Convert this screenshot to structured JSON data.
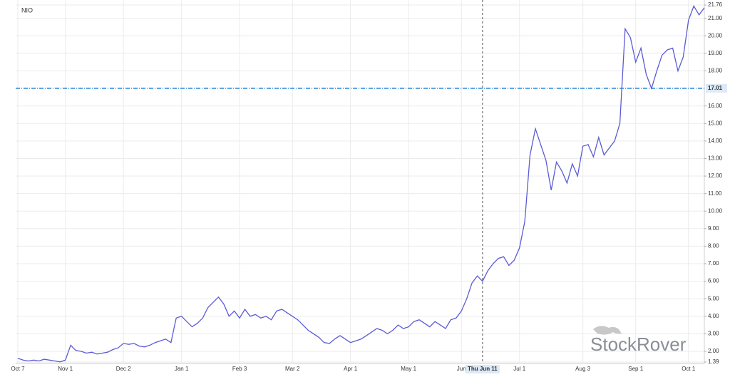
{
  "chart_data": {
    "type": "line",
    "categories": [
      "Oct 7",
      null,
      null,
      null,
      null,
      null,
      null,
      null,
      null,
      "Nov 1",
      null,
      null,
      null,
      null,
      null,
      null,
      null,
      null,
      null,
      null,
      "Dec 2",
      null,
      null,
      null,
      null,
      null,
      null,
      null,
      null,
      null,
      null,
      "Jan 1",
      null,
      null,
      null,
      null,
      null,
      null,
      null,
      null,
      null,
      null,
      "Feb 3",
      null,
      null,
      null,
      null,
      null,
      null,
      null,
      null,
      null,
      "Mar 2",
      null,
      null,
      null,
      null,
      null,
      null,
      null,
      null,
      null,
      null,
      "Apr 1",
      null,
      null,
      null,
      null,
      null,
      null,
      null,
      null,
      null,
      null,
      "May 1",
      null,
      null,
      null,
      null,
      null,
      null,
      null,
      null,
      null,
      "Jun",
      null,
      null,
      null,
      "Thu Jun 11",
      null,
      null,
      null,
      null,
      null,
      null,
      "Jul 1",
      null,
      null,
      null,
      null,
      null,
      null,
      null,
      null,
      null,
      null,
      null,
      "Aug 3",
      null,
      null,
      null,
      null,
      null,
      null,
      null,
      null,
      null,
      "Sep 1",
      null,
      null,
      null,
      null,
      null,
      null,
      null,
      null,
      null,
      "Oct 1",
      null,
      null,
      null
    ],
    "series": [
      {
        "name": "NIO",
        "color": "#5b5bd6",
        "values": [
          1.6,
          1.5,
          1.45,
          1.5,
          1.45,
          1.55,
          1.5,
          1.45,
          1.4,
          1.5,
          2.35,
          2.05,
          2.0,
          1.9,
          1.95,
          1.85,
          1.9,
          1.95,
          2.1,
          2.2,
          2.45,
          2.4,
          2.45,
          2.3,
          2.25,
          2.35,
          2.5,
          2.6,
          2.7,
          2.5,
          3.9,
          4.0,
          3.7,
          3.4,
          3.6,
          3.9,
          4.5,
          4.8,
          5.1,
          4.7,
          4.0,
          4.3,
          3.9,
          4.4,
          4.0,
          4.1,
          3.9,
          4.0,
          3.8,
          4.3,
          4.4,
          4.2,
          4.0,
          3.8,
          3.5,
          3.2,
          3.0,
          2.8,
          2.5,
          2.45,
          2.7,
          2.9,
          2.7,
          2.5,
          2.6,
          2.7,
          2.9,
          3.1,
          3.3,
          3.2,
          3.0,
          3.2,
          3.5,
          3.3,
          3.4,
          3.7,
          3.8,
          3.6,
          3.4,
          3.7,
          3.5,
          3.3,
          3.8,
          3.9,
          4.3,
          5.0,
          5.9,
          6.3,
          6.0,
          6.6,
          7.0,
          7.3,
          7.4,
          6.9,
          7.2,
          7.9,
          9.4,
          13.2,
          14.7,
          13.8,
          12.9,
          11.2,
          12.8,
          12.3,
          11.6,
          12.7,
          12.0,
          13.7,
          13.8,
          13.1,
          14.2,
          13.2,
          13.6,
          14.0,
          15.0,
          20.4,
          19.9,
          18.5,
          19.3,
          17.8,
          17.0,
          18.0,
          18.9,
          19.2,
          19.3,
          18.0,
          18.8,
          20.9,
          21.7,
          21.2,
          21.6
        ]
      }
    ],
    "ylim": [
      1.39,
      21.76
    ],
    "yticks": [
      1.39,
      {
        "value": 2,
        "label": "2.00"
      },
      {
        "value": 3,
        "label": "3.00"
      },
      {
        "value": 4,
        "label": "4.00"
      },
      {
        "value": 5,
        "label": "5.00"
      },
      {
        "value": 6,
        "label": "6.00"
      },
      {
        "value": 7,
        "label": "7.00"
      },
      {
        "value": 8,
        "label": "8.00"
      },
      {
        "value": 9,
        "label": "9.00"
      },
      {
        "value": 10,
        "label": "10.00"
      },
      {
        "value": 11,
        "label": "11.00"
      },
      {
        "value": 12,
        "label": "12.00"
      },
      {
        "value": 13,
        "label": "13.00"
      },
      {
        "value": 14,
        "label": "14.00"
      },
      {
        "value": 15,
        "label": "15.00"
      },
      {
        "value": 16,
        "label": "16.00"
      },
      {
        "value": 18,
        "label": "18.00"
      },
      {
        "value": 19,
        "label": "19.00"
      },
      {
        "value": 20,
        "label": "20.00"
      },
      {
        "value": 21,
        "label": "21.00"
      },
      21.76
    ],
    "grid": true,
    "reference_line": 17.01,
    "reference_color": "#1f7fd4",
    "crosshair_index": 88,
    "watermark": "StockRover"
  }
}
